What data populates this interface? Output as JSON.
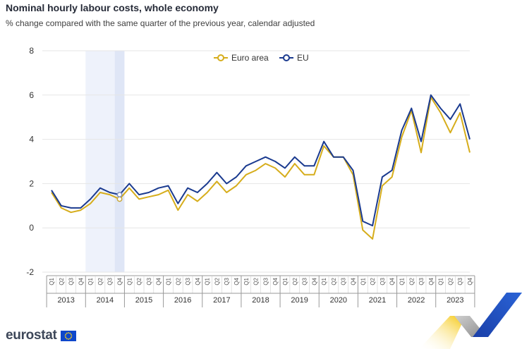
{
  "header": {
    "title": "Nominal hourly labour costs, whole economy",
    "subtitle": "% change compared with the same quarter of the previous year, calendar adjusted"
  },
  "brand": {
    "name": "eurostat"
  },
  "chart_data": {
    "type": "line",
    "title": "Nominal hourly labour costs, whole economy",
    "subtitle": "% change compared with the same quarter of the previous year, calendar adjusted",
    "xlabel": "",
    "ylabel": "",
    "ylim": [
      -2,
      8
    ],
    "yticks": [
      -2,
      0,
      2,
      4,
      6,
      8
    ],
    "grid": true,
    "legend_position": "top-center",
    "quarter_labels": [
      "Q1",
      "Q2",
      "Q3",
      "Q4"
    ],
    "years": [
      "2013",
      "2014",
      "2015",
      "2016",
      "2017",
      "2018",
      "2019",
      "2020",
      "2021",
      "2022",
      "2023"
    ],
    "highlight": {
      "shaded_range_quarters": [
        "2014 Q1",
        "2014 Q4"
      ],
      "hover_quarter": "2014 Q4"
    },
    "series": [
      {
        "name": "Euro area",
        "color": "#d6ad1b",
        "values": [
          1.6,
          0.9,
          0.7,
          0.8,
          1.1,
          1.6,
          1.5,
          1.3,
          1.8,
          1.3,
          1.4,
          1.5,
          1.7,
          0.8,
          1.5,
          1.2,
          1.6,
          2.1,
          1.6,
          1.9,
          2.4,
          2.6,
          2.9,
          2.7,
          2.3,
          2.9,
          2.4,
          2.4,
          3.7,
          3.2,
          3.2,
          2.4,
          -0.1,
          -0.5,
          1.9,
          2.3,
          4.1,
          5.3,
          3.4,
          5.9,
          5.2,
          4.3,
          5.2,
          3.4
        ]
      },
      {
        "name": "EU",
        "color": "#1a3a8f",
        "values": [
          1.7,
          1.0,
          0.9,
          0.9,
          1.3,
          1.8,
          1.6,
          1.5,
          2.0,
          1.5,
          1.6,
          1.8,
          1.9,
          1.1,
          1.8,
          1.6,
          2.0,
          2.5,
          2.0,
          2.3,
          2.8,
          3.0,
          3.2,
          3.0,
          2.7,
          3.2,
          2.8,
          2.8,
          3.9,
          3.2,
          3.2,
          2.6,
          0.3,
          0.1,
          2.3,
          2.6,
          4.4,
          5.4,
          3.9,
          6.0,
          5.4,
          4.9,
          5.6,
          4.0
        ]
      }
    ]
  },
  "colors": {
    "euro_area": "#d6ad1b",
    "eu": "#1a3a8f",
    "grid": "#e6e6e6",
    "shade_light": "#eef2fb",
    "shade_dark": "#dfe6f6",
    "text": "#262b38"
  }
}
